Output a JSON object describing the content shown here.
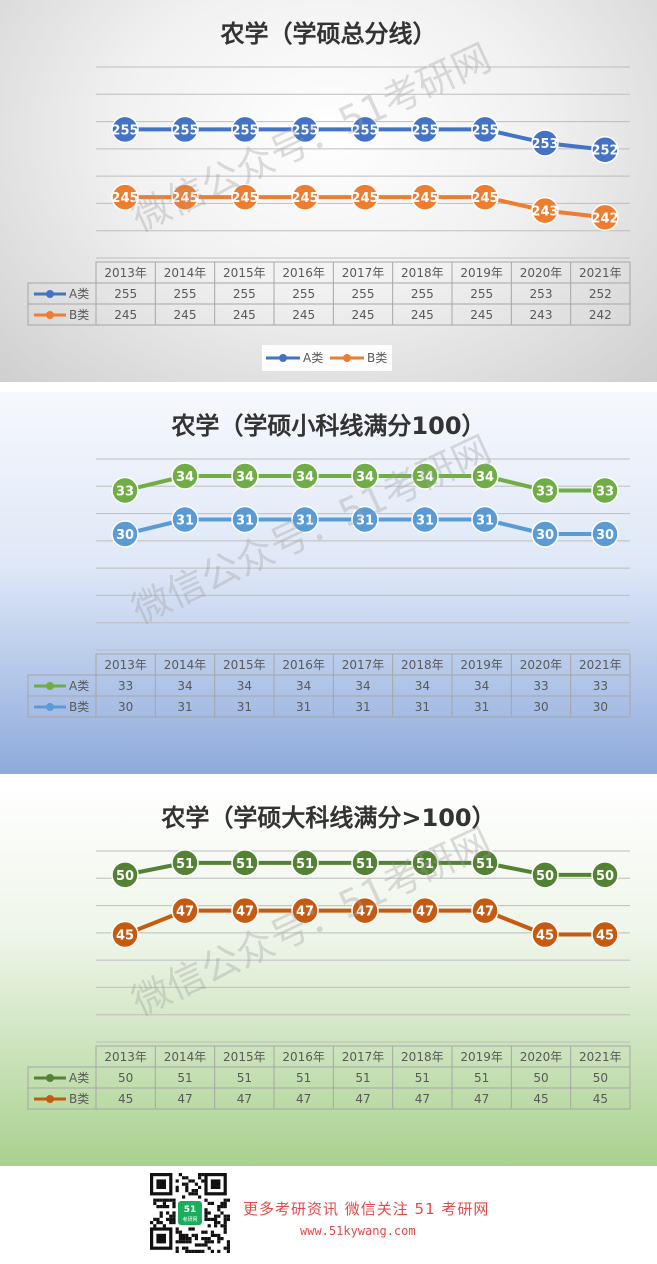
{
  "chart_data": [
    {
      "type": "line",
      "title": "农学（学硕总分线）",
      "categories": [
        "2013年",
        "2014年",
        "2015年",
        "2016年",
        "2017年",
        "2018年",
        "2019年",
        "2020年",
        "2021年"
      ],
      "series": [
        {
          "name": "A类",
          "values": [
            255,
            255,
            255,
            255,
            255,
            255,
            255,
            253,
            252
          ],
          "color": "#4472c4"
        },
        {
          "name": "B类",
          "values": [
            245,
            245,
            245,
            245,
            245,
            245,
            245,
            243,
            242
          ],
          "color": "#ed7d31"
        }
      ],
      "ylim": [
        236,
        266
      ],
      "legend": "bottom",
      "grid": true,
      "data_table": true
    },
    {
      "type": "line",
      "title": "农学（学硕小科线满分100）",
      "categories": [
        "2013年",
        "2014年",
        "2015年",
        "2016年",
        "2017年",
        "2018年",
        "2019年",
        "2020年",
        "2021年"
      ],
      "series": [
        {
          "name": "A类",
          "values": [
            33,
            34,
            34,
            34,
            34,
            34,
            34,
            33,
            33
          ],
          "color": "#70ad47"
        },
        {
          "name": "B类",
          "values": [
            30,
            31,
            31,
            31,
            31,
            31,
            31,
            30,
            30
          ],
          "color": "#5b9bd5"
        }
      ],
      "ylim": [
        22,
        36
      ],
      "legend": "none",
      "grid": true,
      "data_table": true
    },
    {
      "type": "line",
      "title": "农学（学硕大科线满分>100）",
      "categories": [
        "2013年",
        "2014年",
        "2015年",
        "2016年",
        "2017年",
        "2018年",
        "2019年",
        "2020年",
        "2021年"
      ],
      "series": [
        {
          "name": "A类",
          "values": [
            50,
            51,
            51,
            51,
            51,
            51,
            51,
            50,
            50
          ],
          "color": "#548235"
        },
        {
          "name": "B类",
          "values": [
            45,
            47,
            47,
            47,
            47,
            47,
            47,
            45,
            45
          ],
          "color": "#c55a11"
        }
      ],
      "ylim": [
        36,
        53
      ],
      "legend": "none",
      "grid": true,
      "data_table": true
    }
  ],
  "watermark": "微信公众号：51考研网",
  "footer": {
    "line1": "更多考研资讯 微信关注 51 考研网",
    "line2": "www.51kywang.com",
    "qr_badge": "51",
    "qr_badge_sub": "考研网"
  }
}
